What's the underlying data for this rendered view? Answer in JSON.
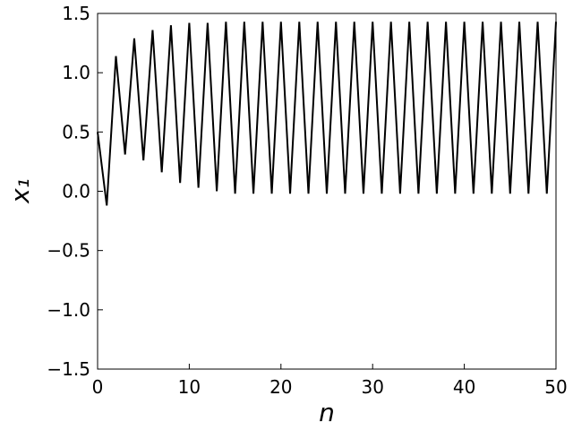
{
  "chart_data": {
    "type": "line",
    "xlabel": "n",
    "ylabel": "x₁",
    "x": [
      0,
      1,
      2,
      3,
      4,
      5,
      6,
      7,
      8,
      9,
      10,
      11,
      12,
      13,
      14,
      15,
      16,
      17,
      18,
      19,
      20,
      21,
      22,
      23,
      24,
      25,
      26,
      27,
      28,
      29,
      30,
      31,
      32,
      33,
      34,
      35,
      36,
      37,
      38,
      39,
      40,
      41,
      42,
      43,
      44,
      45,
      46,
      47,
      48,
      49,
      50
    ],
    "series": [
      {
        "name": "x1",
        "color": "#000000",
        "values": [
          0.5,
          -0.12,
          1.14,
          0.31,
          1.29,
          0.26,
          1.36,
          0.16,
          1.4,
          0.07,
          1.42,
          0.03,
          1.42,
          0.0,
          1.43,
          -0.02,
          1.43,
          -0.02,
          1.43,
          -0.02,
          1.43,
          -0.02,
          1.43,
          -0.02,
          1.43,
          -0.02,
          1.43,
          -0.02,
          1.43,
          -0.02,
          1.43,
          -0.02,
          1.43,
          -0.02,
          1.43,
          -0.02,
          1.43,
          -0.02,
          1.43,
          -0.02,
          1.43,
          -0.02,
          1.43,
          -0.02,
          1.43,
          -0.02,
          1.43,
          -0.02,
          1.43,
          -0.02,
          1.43
        ]
      }
    ],
    "xlim": [
      0,
      50
    ],
    "xticks": [
      0,
      10,
      20,
      30,
      40,
      50
    ],
    "ylim": [
      -1.5,
      1.5
    ],
    "yticks": [
      {
        "value": -1.5,
        "label": "−1.5"
      },
      {
        "value": -1,
        "label": "−1.0"
      },
      {
        "value": -0.5,
        "label": "−0.5"
      },
      {
        "value": 0,
        "label": "0.0"
      },
      0.5,
      {
        "value": 1,
        "label": "1.0"
      },
      1.5
    ],
    "grid": false
  }
}
